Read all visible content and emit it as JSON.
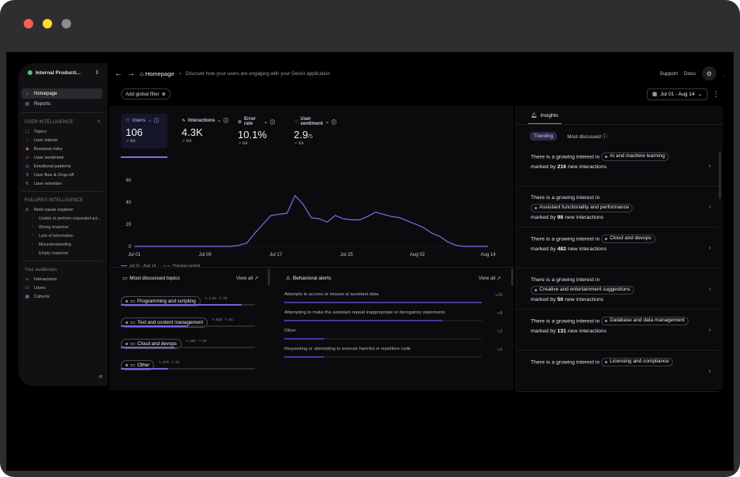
{
  "window": {
    "controls": [
      "close",
      "minimize",
      "zoom"
    ]
  },
  "sidebar": {
    "workspace": "Internal Producti...",
    "nav": [
      {
        "label": "Homepage",
        "icon": "home-icon",
        "active": true
      },
      {
        "label": "Reports",
        "icon": "reports-icon",
        "active": false
      }
    ],
    "user_intelligence": {
      "title": "USER INTELLIGENCE",
      "items": [
        {
          "label": "Topics",
          "icon": "topics-icon"
        },
        {
          "label": "User intents",
          "icon": "intents-icon"
        },
        {
          "label": "Business risks",
          "icon": "risk-icon"
        },
        {
          "label": "User sentiment",
          "icon": "sentiment-icon"
        },
        {
          "label": "Emotional patterns",
          "icon": "emotion-icon"
        },
        {
          "label": "User flow & Drop-off",
          "icon": "flow-icon"
        },
        {
          "label": "User retention",
          "icon": "retention-icon"
        }
      ]
    },
    "failures_intelligence": {
      "title": "FAILURES INTELLIGENCE",
      "root": "Root cause explorer",
      "items": [
        "Unable to perform requested act...",
        "Wrong response",
        "Lack of information",
        "Misunderstanding",
        "Empty response"
      ]
    },
    "audiences": {
      "title": "Your audiences",
      "items": [
        {
          "label": "Interactions",
          "icon": "interactions-icon"
        },
        {
          "label": "Users",
          "icon": "users-icon"
        },
        {
          "label": "Cohorts",
          "icon": "cohorts-icon"
        }
      ]
    }
  },
  "header": {
    "crumb": "Homepage",
    "subtitle": "Discover how your users are engaging with your GenAI application",
    "support": "Support",
    "docs": "Docs",
    "filter": "Add global filter",
    "date_range": "Jul 01 - Aug 14"
  },
  "metrics": [
    {
      "label": "Users",
      "value": "106",
      "suffix": "",
      "trend": "NA",
      "active": true
    },
    {
      "label": "Interactions",
      "value": "4.3K",
      "suffix": "",
      "trend": "NA",
      "active": false
    },
    {
      "label": "Error rate",
      "value": "10.1%",
      "suffix": "",
      "trend": "NA",
      "active": false
    },
    {
      "label": "User sentiment",
      "value": "2.9",
      "suffix": "/5",
      "trend": "NA",
      "active": false
    }
  ],
  "chart_data": {
    "type": "line",
    "x_ticks": [
      "Jul 01",
      "Jul 09",
      "Jul 17",
      "Jul 25",
      "Aug 02",
      "Aug 14"
    ],
    "y_ticks": [
      0,
      20,
      40,
      60
    ],
    "ylim": [
      0,
      60
    ],
    "series": [
      {
        "name": "Jul 01 - Aug 14",
        "color": "#7a6ff0",
        "values": [
          0,
          0,
          0,
          0,
          0,
          0,
          0,
          0,
          0,
          0,
          0,
          0,
          0,
          1,
          3,
          12,
          20,
          28,
          29,
          30,
          46,
          38,
          26,
          25,
          22,
          28,
          25,
          24,
          24,
          27,
          31,
          29,
          27,
          26,
          23,
          20,
          17,
          12,
          9,
          4,
          1,
          0,
          0,
          0,
          0
        ]
      }
    ],
    "legend": [
      "Jul 01 - Aug 14",
      "Previous period"
    ]
  },
  "topics_panel": {
    "title": "Most discussed topics",
    "view_all": "View all",
    "items": [
      {
        "label": "Programming and scripting",
        "interactions": "1.1K",
        "users": "76",
        "share": 0.9
      },
      {
        "label": "Text and content management",
        "interactions": "632",
        "users": "51",
        "share": 0.5
      },
      {
        "label": "Cloud and devops",
        "interactions": "482",
        "users": "32",
        "share": 0.4
      },
      {
        "label": "Other",
        "interactions": "473",
        "users": "31",
        "share": 0.35
      }
    ]
  },
  "alerts_panel": {
    "title": "Behavioral alerts",
    "view_all": "View all",
    "items": [
      {
        "label": "Attempts to access or misuse ai assistant data",
        "count": "10",
        "share": 1.0
      },
      {
        "label": "Attempting to make the assistant repeat inappropriate or derogatory statements",
        "count": "8",
        "share": 0.8
      },
      {
        "label": "Other",
        "count": "2",
        "share": 0.2
      },
      {
        "label": "Requesting or attempting to execute harmful or repetitive code",
        "count": "2",
        "share": 0.2
      }
    ]
  },
  "insights": {
    "title": "Insights",
    "tabs": [
      "Trending",
      "Most discussed"
    ],
    "prefix": "There is a growing interest in",
    "marked_by": "marked by",
    "suffix": "new interactions",
    "items": [
      {
        "topic": "Ai and machine learning",
        "count": "216"
      },
      {
        "topic": "Assistant functionality and performance",
        "count": "98"
      },
      {
        "topic": "Cloud and devops",
        "count": "482"
      },
      {
        "topic": "Creative and entertainment suggestions",
        "count": "50"
      },
      {
        "topic": "Database and data management",
        "count": "131"
      },
      {
        "topic": "Licensing and compliance",
        "count": ""
      }
    ]
  }
}
